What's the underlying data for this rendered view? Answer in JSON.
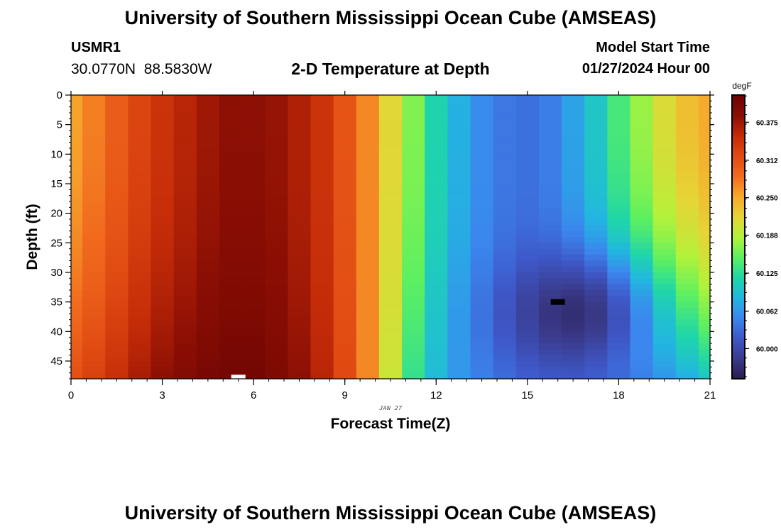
{
  "header": {
    "title": "University of Southern Mississippi Ocean Cube (AMSEAS)",
    "station": "USMR1",
    "coordinates": "30.0770N  88.5830W",
    "subtitle": "2-D Temperature at Depth",
    "model_start_label": "Model Start Time",
    "model_start_value": "01/27/2024 Hour 00"
  },
  "footer": {
    "title": "University of Southern Mississippi Ocean Cube (AMSEAS)"
  },
  "chart_data": {
    "type": "heatmap",
    "title": "2-D Temperature at Depth",
    "xlabel": "Forecast Time(Z)",
    "ylabel": "Depth (ft)",
    "date_label": "JAN 27",
    "xlim": [
      0,
      21
    ],
    "ylim": [
      0,
      48
    ],
    "y_inverted": true,
    "x_ticks": [
      0,
      3,
      6,
      9,
      12,
      15,
      18,
      21
    ],
    "y_ticks": [
      0,
      5,
      10,
      15,
      20,
      25,
      30,
      35,
      40,
      45
    ],
    "colorbar": {
      "unit": "degF",
      "range": [
        59.95,
        60.42
      ],
      "ticks": [
        "60.000",
        "60.062",
        "60.125",
        "60.188",
        "60.250",
        "60.312",
        "60.375"
      ],
      "tick_values": [
        60.0,
        60.062,
        60.125,
        60.188,
        60.25,
        60.312,
        60.375
      ],
      "colors": [
        "#2c1c50",
        "#3a3b8c",
        "#3e58c8",
        "#3b86ee",
        "#22b7e0",
        "#1fd6a8",
        "#5ef060",
        "#b3f23a",
        "#e6d436",
        "#f7a82c",
        "#f16b1e",
        "#e04a12",
        "#c42c08",
        "#8a0e04",
        "#6a0402"
      ]
    },
    "time_steps": [
      0,
      0.75,
      1.5,
      2.25,
      3,
      3.75,
      4.5,
      5.25,
      6,
      6.75,
      7.5,
      8.25,
      9,
      9.75,
      10.5,
      11.25,
      12,
      12.75,
      13.5,
      14.25,
      15,
      15.75,
      16.5,
      17.25,
      18,
      18.75,
      19.5,
      20.25,
      21
    ],
    "surface_temp_degF": [
      60.255,
      60.275,
      60.3,
      60.325,
      60.345,
      60.36,
      60.375,
      60.385,
      60.385,
      60.38,
      60.365,
      60.345,
      60.31,
      60.27,
      60.215,
      60.165,
      60.115,
      60.08,
      60.055,
      60.04,
      60.035,
      60.045,
      60.07,
      60.1,
      60.14,
      60.175,
      60.21,
      60.235,
      60.25
    ],
    "bottom_temp_degF": [
      60.315,
      60.33,
      60.35,
      60.37,
      60.385,
      60.395,
      60.405,
      60.41,
      60.41,
      60.4,
      60.385,
      60.36,
      60.32,
      60.27,
      60.2,
      60.13,
      60.09,
      60.065,
      60.05,
      60.04,
      60.035,
      60.035,
      60.035,
      60.04,
      60.045,
      60.055,
      60.065,
      60.08,
      60.1
    ],
    "cold_core": {
      "time": 16.5,
      "depth_ft": 37,
      "temp_degF": 59.97
    },
    "markers": [
      {
        "time": 5.5,
        "depth_ft": 47.8,
        "color": "#ffffff"
      },
      {
        "time": 16.0,
        "depth_ft": 35,
        "color": "#000000"
      }
    ]
  }
}
